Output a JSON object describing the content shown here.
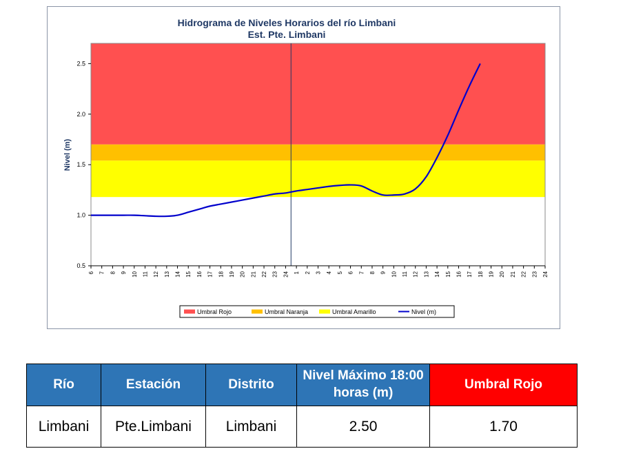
{
  "chart_data": {
    "type": "line",
    "title": "Hidrograma de Niveles Horarios del río Limbani",
    "subtitle": "Est. Pte. Limbani",
    "ylabel": "Nivel (m)",
    "xlabel": "",
    "ylim": [
      0.5,
      2.7
    ],
    "yticks": [
      "0.5",
      "1.0",
      "1.5",
      "2.0",
      "2.5"
    ],
    "xticks": [
      "6",
      "7",
      "8",
      "9",
      "10",
      "11",
      "12",
      "13",
      "14",
      "15",
      "16",
      "17",
      "18",
      "19",
      "20",
      "21",
      "22",
      "23",
      "24",
      "1",
      "2",
      "3",
      "4",
      "5",
      "6",
      "7",
      "8",
      "9",
      "10",
      "11",
      "12",
      "13",
      "14",
      "15",
      "16",
      "17",
      "18",
      "19",
      "20",
      "21",
      "22",
      "23",
      "24"
    ],
    "day_divider_index": 18.5,
    "bands": [
      {
        "name": "Umbral Rojo",
        "from": 1.7,
        "to": 2.7,
        "color": "#ff5050"
      },
      {
        "name": "Umbral Naranja",
        "from": 1.54,
        "to": 1.7,
        "color": "#ffc000"
      },
      {
        "name": "Umbral Amarillo",
        "from": 1.18,
        "to": 1.54,
        "color": "#ffff00"
      }
    ],
    "series": [
      {
        "name": "Nivel (m)",
        "color": "#0000cc",
        "x": [
          0,
          1,
          2,
          3,
          4,
          5,
          6,
          7,
          8,
          9,
          10,
          11,
          12,
          13,
          14,
          15,
          16,
          17,
          18,
          19,
          20,
          21,
          22,
          23,
          24,
          25,
          26,
          27,
          28,
          29,
          30,
          31,
          32,
          33,
          34,
          35,
          36
        ],
        "values": [
          1.0,
          1.0,
          1.0,
          1.0,
          1.0,
          0.995,
          0.99,
          0.99,
          1.0,
          1.03,
          1.06,
          1.09,
          1.11,
          1.13,
          1.15,
          1.17,
          1.19,
          1.21,
          1.22,
          1.24,
          1.255,
          1.27,
          1.285,
          1.295,
          1.3,
          1.29,
          1.24,
          1.2,
          1.2,
          1.21,
          1.26,
          1.38,
          1.57,
          1.79,
          2.04,
          2.28,
          2.5
        ]
      }
    ],
    "legend": [
      "Umbral Rojo",
      "Umbral Naranja",
      "Umbral Amarillo",
      "Nivel (m)"
    ],
    "legend_position": "bottom"
  },
  "table": {
    "headers": [
      "Río",
      "Estación",
      "Distrito",
      "Nivel Máximo 18:00 horas (m)",
      "Umbral Rojo"
    ],
    "row": [
      "Limbani",
      "Pte.Limbani",
      "Limbani",
      "2.50",
      "1.70"
    ]
  }
}
